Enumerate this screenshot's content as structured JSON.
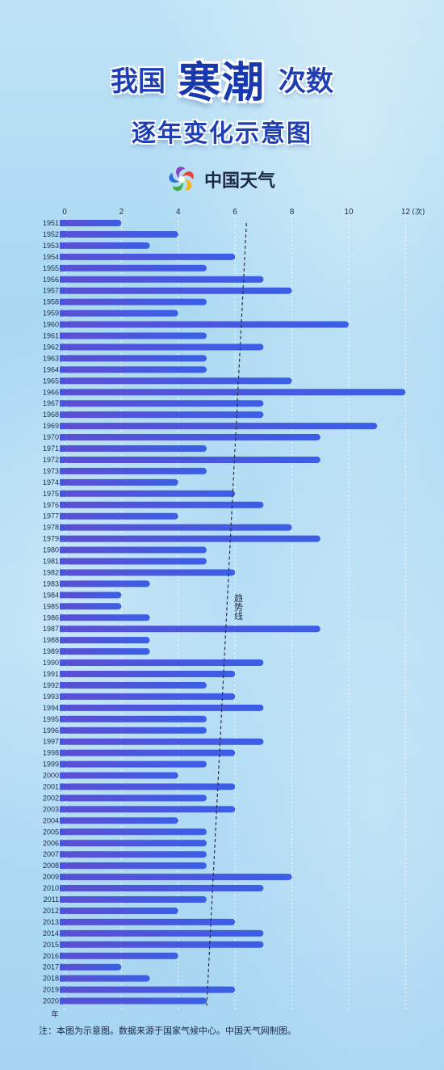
{
  "title": {
    "left": "我国",
    "highlight": "寒潮",
    "right": "次数",
    "subtitle": "逐年变化示意图"
  },
  "brand": {
    "name": "中国天气",
    "logo_icon": "china-weather-swirl-icon",
    "logo_colors": [
      "#e8433b",
      "#f6b21c",
      "#3fb04a",
      "#2e6fd8",
      "#8a3fc7"
    ]
  },
  "colors": {
    "bar_start": "#5b4fd4",
    "bar_end": "#3a5fe6",
    "trend": "#2b3344",
    "grid": "#ffffff"
  },
  "footnote": "注：本图为示意图。数据来源于国家气候中心。中国天气网制图。",
  "chart_data": {
    "type": "bar",
    "orientation": "horizontal",
    "title": "我国寒潮次数逐年变化示意图",
    "xlabel": "(次)",
    "ylabel": "年",
    "xlim": [
      0,
      12
    ],
    "x_ticks": [
      "0",
      "2",
      "4",
      "6",
      "8",
      "10",
      "12"
    ],
    "x_unit": "(次)",
    "y_unit": "年",
    "grid": "vertical dashed",
    "trend_label": "趋势线",
    "trend": {
      "start": {
        "year": "1951",
        "value": 6.4
      },
      "end": {
        "year": "2020",
        "value": 5.0
      }
    },
    "categories": [
      "1951",
      "1952",
      "1953",
      "1954",
      "1955",
      "1956",
      "1957",
      "1958",
      "1959",
      "1960",
      "1961",
      "1962",
      "1963",
      "1964",
      "1965",
      "1966",
      "1967",
      "1968",
      "1969",
      "1970",
      "1971",
      "1972",
      "1973",
      "1974",
      "1975",
      "1976",
      "1977",
      "1978",
      "1979",
      "1980",
      "1981",
      "1982",
      "1983",
      "1984",
      "1985",
      "1986",
      "1987",
      "1988",
      "1989",
      "1990",
      "1991",
      "1992",
      "1993",
      "1994",
      "1995",
      "1996",
      "1997",
      "1998",
      "1999",
      "2000",
      "2001",
      "2002",
      "2003",
      "2004",
      "2005",
      "2006",
      "2007",
      "2008",
      "2009",
      "2010",
      "2011",
      "2012",
      "2013",
      "2014",
      "2015",
      "2016",
      "2017",
      "2018",
      "2019",
      "2020"
    ],
    "values": [
      2,
      4,
      3,
      6,
      5,
      7,
      8,
      5,
      4,
      10,
      5,
      7,
      5,
      5,
      8,
      12,
      7,
      7,
      11,
      9,
      5,
      9,
      5,
      4,
      6,
      7,
      4,
      8,
      9,
      5,
      5,
      6,
      3,
      2,
      2,
      3,
      9,
      3,
      3,
      7,
      6,
      5,
      6,
      7,
      5,
      5,
      7,
      6,
      5,
      4,
      6,
      5,
      6,
      4,
      5,
      5,
      5,
      5,
      8,
      7,
      5,
      4,
      6,
      7,
      7,
      4,
      2,
      3,
      6,
      5
    ]
  }
}
